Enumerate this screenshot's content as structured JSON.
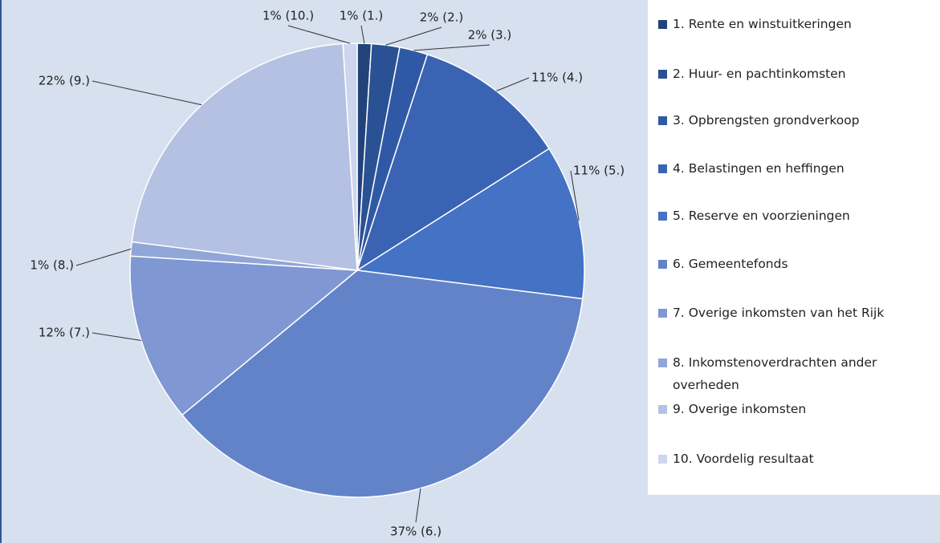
{
  "chart_data": {
    "type": "pie",
    "categories": [
      "1. Rente en winstuitkeringen",
      "2. Huur- en pachtinkomsten",
      "3. Opbrengsten grondverkoop",
      "4. Belastingen en heffingen",
      "5. Reserve en voorzieningen",
      "6. Gemeentefonds",
      "7. Overige inkomsten van het Rijk",
      "8. Inkomstenoverdrachten ander overheden",
      "9. Overige inkomsten",
      "10. Voordelig resultaat"
    ],
    "values": [
      1,
      2,
      2,
      11,
      11,
      37,
      12,
      1,
      22,
      1
    ],
    "value_labels": [
      "1% (1.)",
      "2% (2.)",
      "2% (3.)",
      "11% (4.)",
      "11% (5.)",
      "37% (6.)",
      "12% (7.)",
      "1% (8.)",
      "22% (9.)",
      "1% (10.)"
    ],
    "colors": [
      "#22427a",
      "#2a5194",
      "#3059a5",
      "#3a63b3",
      "#4472c4",
      "#6383c9",
      "#7f97d2",
      "#91a6d8",
      "#b4c1e2",
      "#cdd6ee"
    ]
  }
}
